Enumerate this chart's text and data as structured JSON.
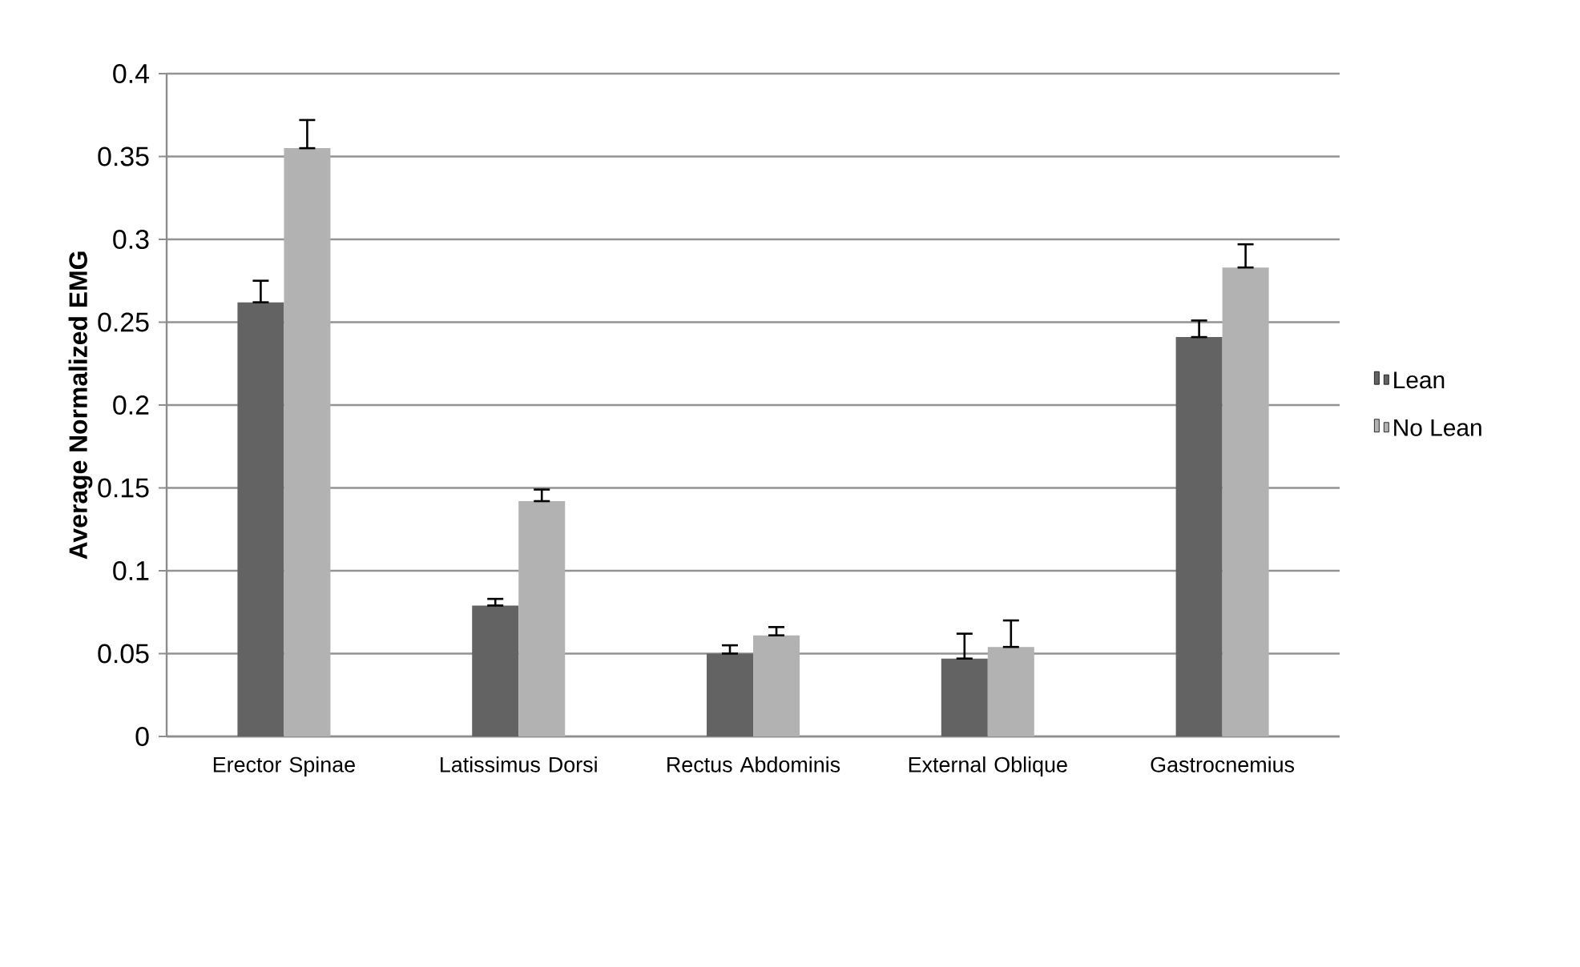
{
  "chart_data": {
    "type": "bar",
    "ylabel": "Average Normalized EMG",
    "categories": [
      "Erector Spinae",
      "Latissimus Dorsi",
      "Rectus Abdominis",
      "External Oblique",
      "Gastrocnemius"
    ],
    "series": [
      {
        "name": "Lean",
        "color": "#636363",
        "values": [
          0.262,
          0.079,
          0.05,
          0.047,
          0.241
        ],
        "errors": [
          [
            0.262,
            0.275
          ],
          [
            0.079,
            0.083
          ],
          [
            0.05,
            0.055
          ],
          [
            0.047,
            0.062
          ],
          [
            0.241,
            0.251
          ]
        ]
      },
      {
        "name": "No Lean",
        "color": "#b2b2b2",
        "values": [
          0.355,
          0.142,
          0.061,
          0.054,
          0.283
        ],
        "errors": [
          [
            0.355,
            0.372
          ],
          [
            0.142,
            0.149
          ],
          [
            0.061,
            0.066
          ],
          [
            0.054,
            0.07
          ],
          [
            0.283,
            0.297
          ]
        ]
      }
    ],
    "ylim": [
      0,
      0.4
    ],
    "yticks": [
      0,
      0.05,
      0.1,
      0.15,
      0.2,
      0.25,
      0.3,
      0.35,
      0.4
    ],
    "grid": "y",
    "legend": "right"
  }
}
